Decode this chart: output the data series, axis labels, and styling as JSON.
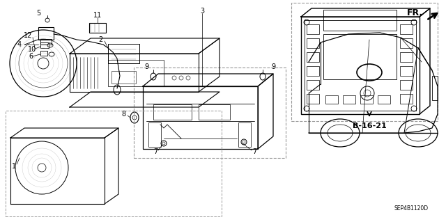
{
  "bg_color": "#ffffff",
  "fig_width": 6.4,
  "fig_height": 3.19,
  "diagram_code": "SEP4B1120D",
  "fr_label": "FR.",
  "label_B1621": "B-16-21",
  "label_fontsize": 7,
  "small_fontsize": 5.5,
  "line_color": "#000000",
  "gray_color": "#888888"
}
